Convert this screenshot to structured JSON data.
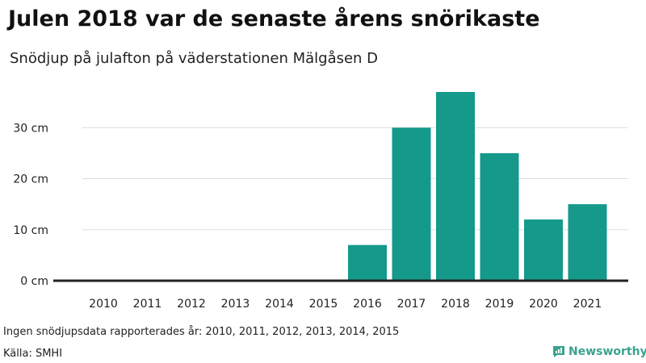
{
  "title": "Julen 2018 var de senaste årens snörikaste",
  "subtitle": "Snödjup på julafton på väderstationen Mälgåsen D",
  "note": "Ingen snödjupsdata rapporterades år: 2010, 2011, 2012, 2013, 2014, 2015",
  "source": "Källa: SMHI",
  "brand": {
    "name": "Newsworthy",
    "color": "#3aa38f",
    "icon": "bar-chart-logo-icon"
  },
  "colors": {
    "bar": "#14998a",
    "grid": "#dddddd",
    "baseline": "#222222"
  },
  "chart_data": {
    "type": "bar",
    "categories": [
      "2010",
      "2011",
      "2012",
      "2013",
      "2014",
      "2015",
      "2016",
      "2017",
      "2018",
      "2019",
      "2020",
      "2021"
    ],
    "values": [
      0,
      0,
      0,
      0,
      0,
      0,
      7,
      30,
      37,
      25,
      12,
      15
    ],
    "ylim": [
      0,
      37
    ],
    "yticks": [
      0,
      10,
      20,
      30
    ],
    "ytick_labels": [
      "0 cm",
      "10 cm",
      "20 cm",
      "30 cm"
    ],
    "grid": true
  }
}
